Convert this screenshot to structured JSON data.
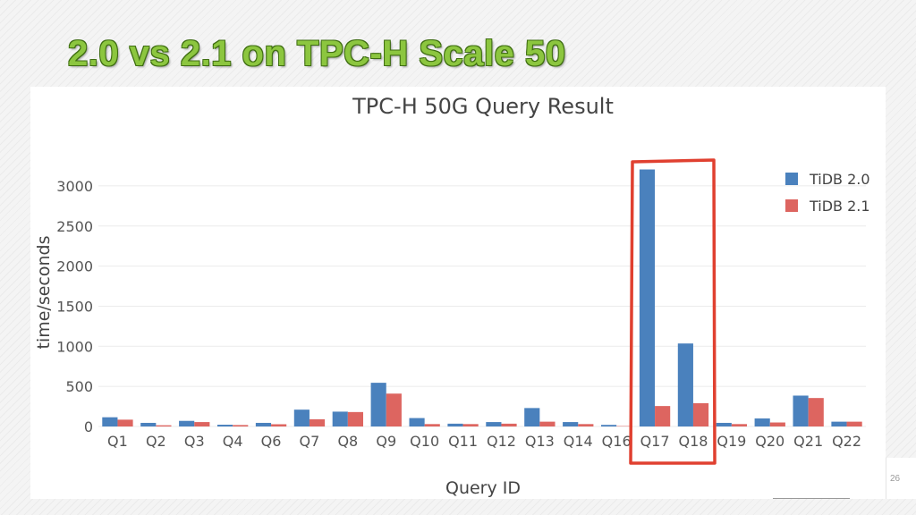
{
  "slide": {
    "title": "2.0 vs 2.1 on TPC-H Scale 50",
    "page_number": "26"
  },
  "colors": {
    "title_green": "#8cc63f",
    "series_tidb20": "#4a81bd",
    "series_tidb21": "#dd6560",
    "highlight_box": "#e04030"
  },
  "chart_data": {
    "type": "bar",
    "title": "TPC-H 50G Query Result",
    "xlabel": "Query ID",
    "ylabel": "time/seconds",
    "categories": [
      "Q1",
      "Q2",
      "Q3",
      "Q4",
      "Q6",
      "Q7",
      "Q8",
      "Q9",
      "Q10",
      "Q11",
      "Q12",
      "Q13",
      "Q14",
      "Q16",
      "Q17",
      "Q18",
      "Q19",
      "Q20",
      "Q21",
      "Q22"
    ],
    "series": [
      {
        "name": "TiDB 2.0",
        "color": "#4a81bd",
        "values": [
          115,
          45,
          70,
          22,
          45,
          210,
          185,
          545,
          105,
          35,
          55,
          230,
          55,
          20,
          3205,
          1035,
          45,
          100,
          385,
          60
        ]
      },
      {
        "name": "TiDB 2.1",
        "color": "#dd6560",
        "values": [
          85,
          15,
          55,
          18,
          28,
          90,
          180,
          410,
          30,
          30,
          35,
          60,
          30,
          5,
          255,
          290,
          30,
          50,
          355,
          60
        ]
      }
    ],
    "ylim": [
      0,
      3300
    ],
    "yticks": [
      0,
      500,
      1000,
      1500,
      2000,
      2500,
      3000
    ],
    "grid": true,
    "legend_position": "top-right",
    "highlight": [
      "Q17",
      "Q18"
    ]
  }
}
